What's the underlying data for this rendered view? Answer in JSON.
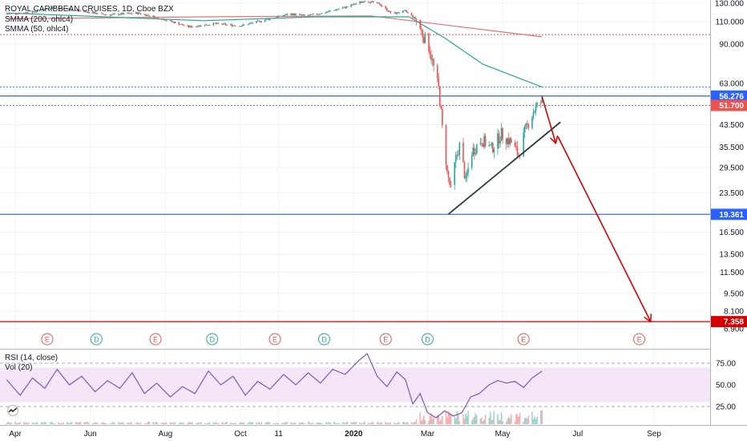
{
  "legend": {
    "symbol": "ROYAL CARIBBEAN CRUISES, 1D, Cboe BZX",
    "smma200": "SMMA (200, ohlc4)",
    "smma50": "SMMA (50, ohlc4)",
    "rsi": "RSI (14, close)",
    "vol": "Vol (20)"
  },
  "colors": {
    "up": "#26a69a",
    "down": "#ef5350",
    "smma200": "#e57373",
    "smma50": "#26a69a",
    "rsi": "#7e57c2",
    "rsi_band": "#f3e5f5",
    "blue_line": "#2962ff",
    "red_arrow": "#d50000",
    "grid": "#f0f3fa"
  },
  "chart_data": [
    {
      "type": "candlestick",
      "title": "ROYAL CARIBBEAN CRUISES, 1D, Cboe BZX",
      "scale": "log",
      "y_ticks": [
        130,
        110,
        90,
        63,
        43.5,
        35.5,
        29.5,
        23.5,
        16.5,
        13.5,
        11.5,
        9.5,
        8.1,
        6.9
      ],
      "ylim": [
        6.5,
        140
      ],
      "x_ticks": [
        "Apr",
        "Jun",
        "Aug",
        "Oct",
        "11",
        "2020",
        "Mar",
        "May",
        "Jul",
        "Sep"
      ],
      "x_tick_dates": [
        "2019-04-01",
        "2019-06-01",
        "2019-08-01",
        "2019-10-01",
        "2019-11-01",
        "2020-01-01",
        "2020-03-01",
        "2020-05-01",
        "2020-07-01",
        "2020-09-01"
      ],
      "price_labels": [
        {
          "value": "56.276",
          "color": "#2962ff"
        },
        {
          "value": "51.700",
          "color": "#ef5350"
        },
        {
          "value": "19.361",
          "color": "#2962ff"
        },
        {
          "value": "7.358",
          "color": "#d50000"
        }
      ],
      "horizontal_lines": [
        {
          "value": 98,
          "style": "dotted",
          "color": "#ef5350"
        },
        {
          "value": 61,
          "style": "dotted",
          "color": "#26a69a"
        },
        {
          "value": 56.276,
          "style": "solid",
          "color": "#2962ff"
        },
        {
          "value": 51.7,
          "style": "dotted",
          "color": "#ef5350"
        },
        {
          "value": 19.361,
          "style": "solid",
          "color": "#2962ff"
        },
        {
          "value": 7.358,
          "style": "solid",
          "color": "#d50000"
        }
      ],
      "close_path": [
        [
          "2019-03-25",
          118
        ],
        [
          "2019-04-15",
          120
        ],
        [
          "2019-05-01",
          125
        ],
        [
          "2019-05-20",
          122
        ],
        [
          "2019-06-15",
          117
        ],
        [
          "2019-07-10",
          119
        ],
        [
          "2019-08-01",
          112
        ],
        [
          "2019-08-20",
          105
        ],
        [
          "2019-09-10",
          108
        ],
        [
          "2019-10-01",
          106
        ],
        [
          "2019-10-25",
          113
        ],
        [
          "2019-11-10",
          118
        ],
        [
          "2019-11-25",
          116
        ],
        [
          "2019-12-10",
          120
        ],
        [
          "2019-12-27",
          126
        ],
        [
          "2020-01-10",
          133
        ],
        [
          "2020-01-22",
          129
        ],
        [
          "2020-02-01",
          118
        ],
        [
          "2020-02-12",
          121
        ],
        [
          "2020-02-21",
          112
        ],
        [
          "2020-02-26",
          98
        ],
        [
          "2020-03-02",
          88
        ],
        [
          "2020-03-06",
          73
        ],
        [
          "2020-03-10",
          60
        ],
        [
          "2020-03-13",
          42
        ],
        [
          "2020-03-17",
          28
        ],
        [
          "2020-03-20",
          24
        ],
        [
          "2020-03-24",
          32
        ],
        [
          "2020-03-27",
          36
        ],
        [
          "2020-04-01",
          26
        ],
        [
          "2020-04-06",
          34
        ],
        [
          "2020-04-14",
          38
        ],
        [
          "2020-04-22",
          35
        ],
        [
          "2020-04-30",
          40
        ],
        [
          "2020-05-08",
          37
        ],
        [
          "2020-05-14",
          33
        ],
        [
          "2020-05-20",
          42
        ],
        [
          "2020-05-27",
          50
        ],
        [
          "2020-06-02",
          54
        ]
      ],
      "smma200": [
        [
          "2019-03-25",
          113
        ],
        [
          "2019-09-01",
          115
        ],
        [
          "2020-01-15",
          116
        ],
        [
          "2020-06-02",
          96
        ]
      ],
      "smma50": [
        [
          "2019-03-25",
          119
        ],
        [
          "2019-09-01",
          111
        ],
        [
          "2019-12-01",
          115
        ],
        [
          "2020-02-15",
          115
        ],
        [
          "2020-03-15",
          95
        ],
        [
          "2020-04-15",
          75
        ],
        [
          "2020-06-02",
          61
        ]
      ],
      "drawings": {
        "trendline": [
          [
            "2020-03-18",
            19.4
          ],
          [
            "2020-06-17",
            44.5
          ]
        ],
        "arrow_1": [
          [
            "2020-06-02",
            56
          ],
          [
            "2020-06-13",
            37
          ]
        ],
        "arrow_2": [
          [
            "2020-06-15",
            39
          ],
          [
            "2020-08-29",
            7.4
          ]
        ]
      },
      "events": [
        {
          "letter": "E",
          "date": "2019-04-27",
          "color": "#ef5350"
        },
        {
          "letter": "D",
          "date": "2019-06-06",
          "color": "#26a69a"
        },
        {
          "letter": "E",
          "date": "2019-07-24",
          "color": "#ef5350"
        },
        {
          "letter": "D",
          "date": "2019-09-08",
          "color": "#26a69a"
        },
        {
          "letter": "E",
          "date": "2019-10-29",
          "color": "#ef5350"
        },
        {
          "letter": "D",
          "date": "2019-12-08",
          "color": "#26a69a"
        },
        {
          "letter": "E",
          "date": "2020-01-27",
          "color": "#ef5350"
        },
        {
          "letter": "D",
          "date": "2020-03-01",
          "color": "#26a69a"
        },
        {
          "letter": "E",
          "date": "2020-05-18",
          "color": "#ef5350"
        },
        {
          "letter": "E",
          "date": "2020-08-20",
          "color": "#ef5350"
        }
      ]
    },
    {
      "type": "line",
      "title": "RSI (14, close)",
      "y_ticks": [
        75,
        50,
        25
      ],
      "ylim": [
        5,
        100
      ],
      "band": [
        30,
        70
      ],
      "series": [
        {
          "name": "RSI (14, close)",
          "points": [
            [
              "2019-03-25",
              56
            ],
            [
              "2019-04-05",
              38
            ],
            [
              "2019-04-15",
              58
            ],
            [
              "2019-04-25",
              46
            ],
            [
              "2019-05-05",
              68
            ],
            [
              "2019-05-15",
              50
            ],
            [
              "2019-05-25",
              60
            ],
            [
              "2019-06-05",
              42
            ],
            [
              "2019-06-15",
              55
            ],
            [
              "2019-06-25",
              46
            ],
            [
              "2019-07-05",
              64
            ],
            [
              "2019-07-15",
              40
            ],
            [
              "2019-07-25",
              52
            ],
            [
              "2019-08-05",
              36
            ],
            [
              "2019-08-15",
              48
            ],
            [
              "2019-08-25",
              40
            ],
            [
              "2019-09-05",
              66
            ],
            [
              "2019-09-15",
              50
            ],
            [
              "2019-09-25",
              60
            ],
            [
              "2019-10-05",
              38
            ],
            [
              "2019-10-15",
              54
            ],
            [
              "2019-10-25",
              45
            ],
            [
              "2019-11-05",
              62
            ],
            [
              "2019-11-15",
              50
            ],
            [
              "2019-11-25",
              64
            ],
            [
              "2019-12-05",
              52
            ],
            [
              "2019-12-15",
              68
            ],
            [
              "2019-12-25",
              62
            ],
            [
              "2020-01-05",
              78
            ],
            [
              "2020-01-12",
              86
            ],
            [
              "2020-01-20",
              60
            ],
            [
              "2020-01-28",
              48
            ],
            [
              "2020-02-05",
              65
            ],
            [
              "2020-02-12",
              56
            ],
            [
              "2020-02-18",
              28
            ],
            [
              "2020-02-24",
              40
            ],
            [
              "2020-03-01",
              18
            ],
            [
              "2020-03-08",
              12
            ],
            [
              "2020-03-15",
              20
            ],
            [
              "2020-03-22",
              14
            ],
            [
              "2020-03-29",
              18
            ],
            [
              "2020-04-05",
              36
            ],
            [
              "2020-04-12",
              40
            ],
            [
              "2020-04-20",
              50
            ],
            [
              "2020-04-27",
              55
            ],
            [
              "2020-05-04",
              52
            ],
            [
              "2020-05-11",
              54
            ],
            [
              "2020-05-18",
              47
            ],
            [
              "2020-05-25",
              58
            ],
            [
              "2020-06-02",
              66
            ]
          ]
        }
      ]
    }
  ]
}
